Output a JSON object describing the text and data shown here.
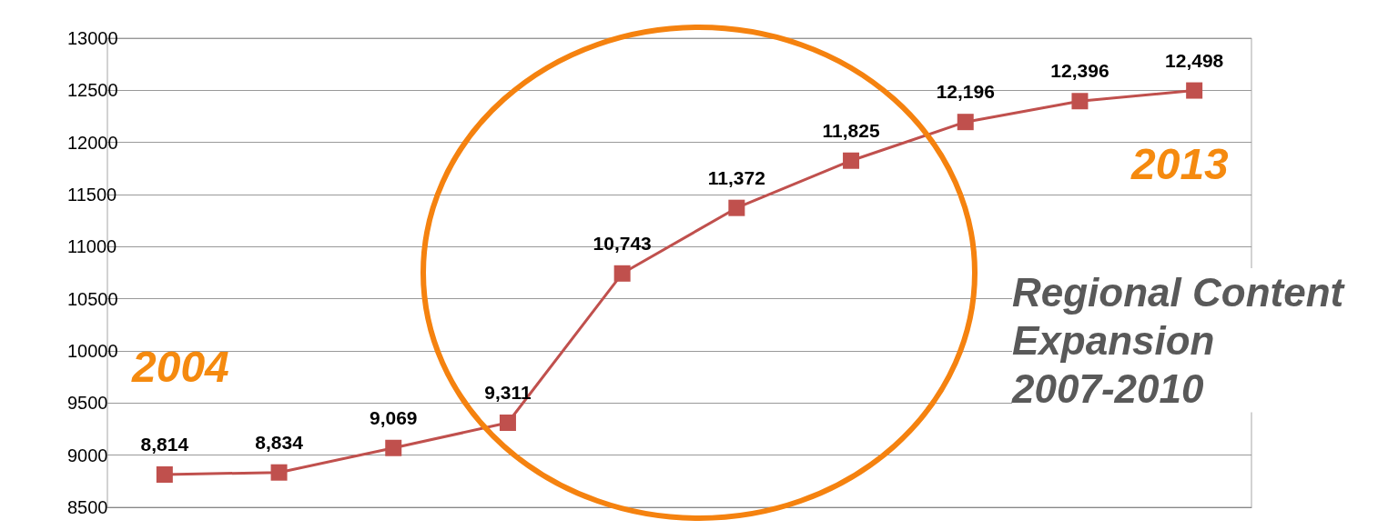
{
  "chart_data": {
    "type": "line",
    "categories": [
      null,
      null,
      null,
      null,
      null,
      null,
      null,
      null,
      null,
      null
    ],
    "series": [
      {
        "color": "#c0504d",
        "values": [
          8814,
          8834,
          9069,
          9311,
          10743,
          11372,
          11825,
          12196,
          12396,
          12498
        ],
        "value_labels": [
          "8,814",
          "8,834",
          "9,069",
          "9,311",
          "10,743",
          "11,372",
          "11,825",
          "12,196",
          "12,396",
          "12,498"
        ]
      }
    ],
    "ylim": [
      8500,
      13000
    ],
    "yticks": [
      8500,
      9000,
      9500,
      10000,
      10500,
      11000,
      11500,
      12000,
      12500,
      13000
    ],
    "grid": "y",
    "marker": "square",
    "line_style": "solid",
    "annotations": [
      "2004",
      "2013",
      "Regional Content Expansion 2007-2010"
    ]
  }
}
